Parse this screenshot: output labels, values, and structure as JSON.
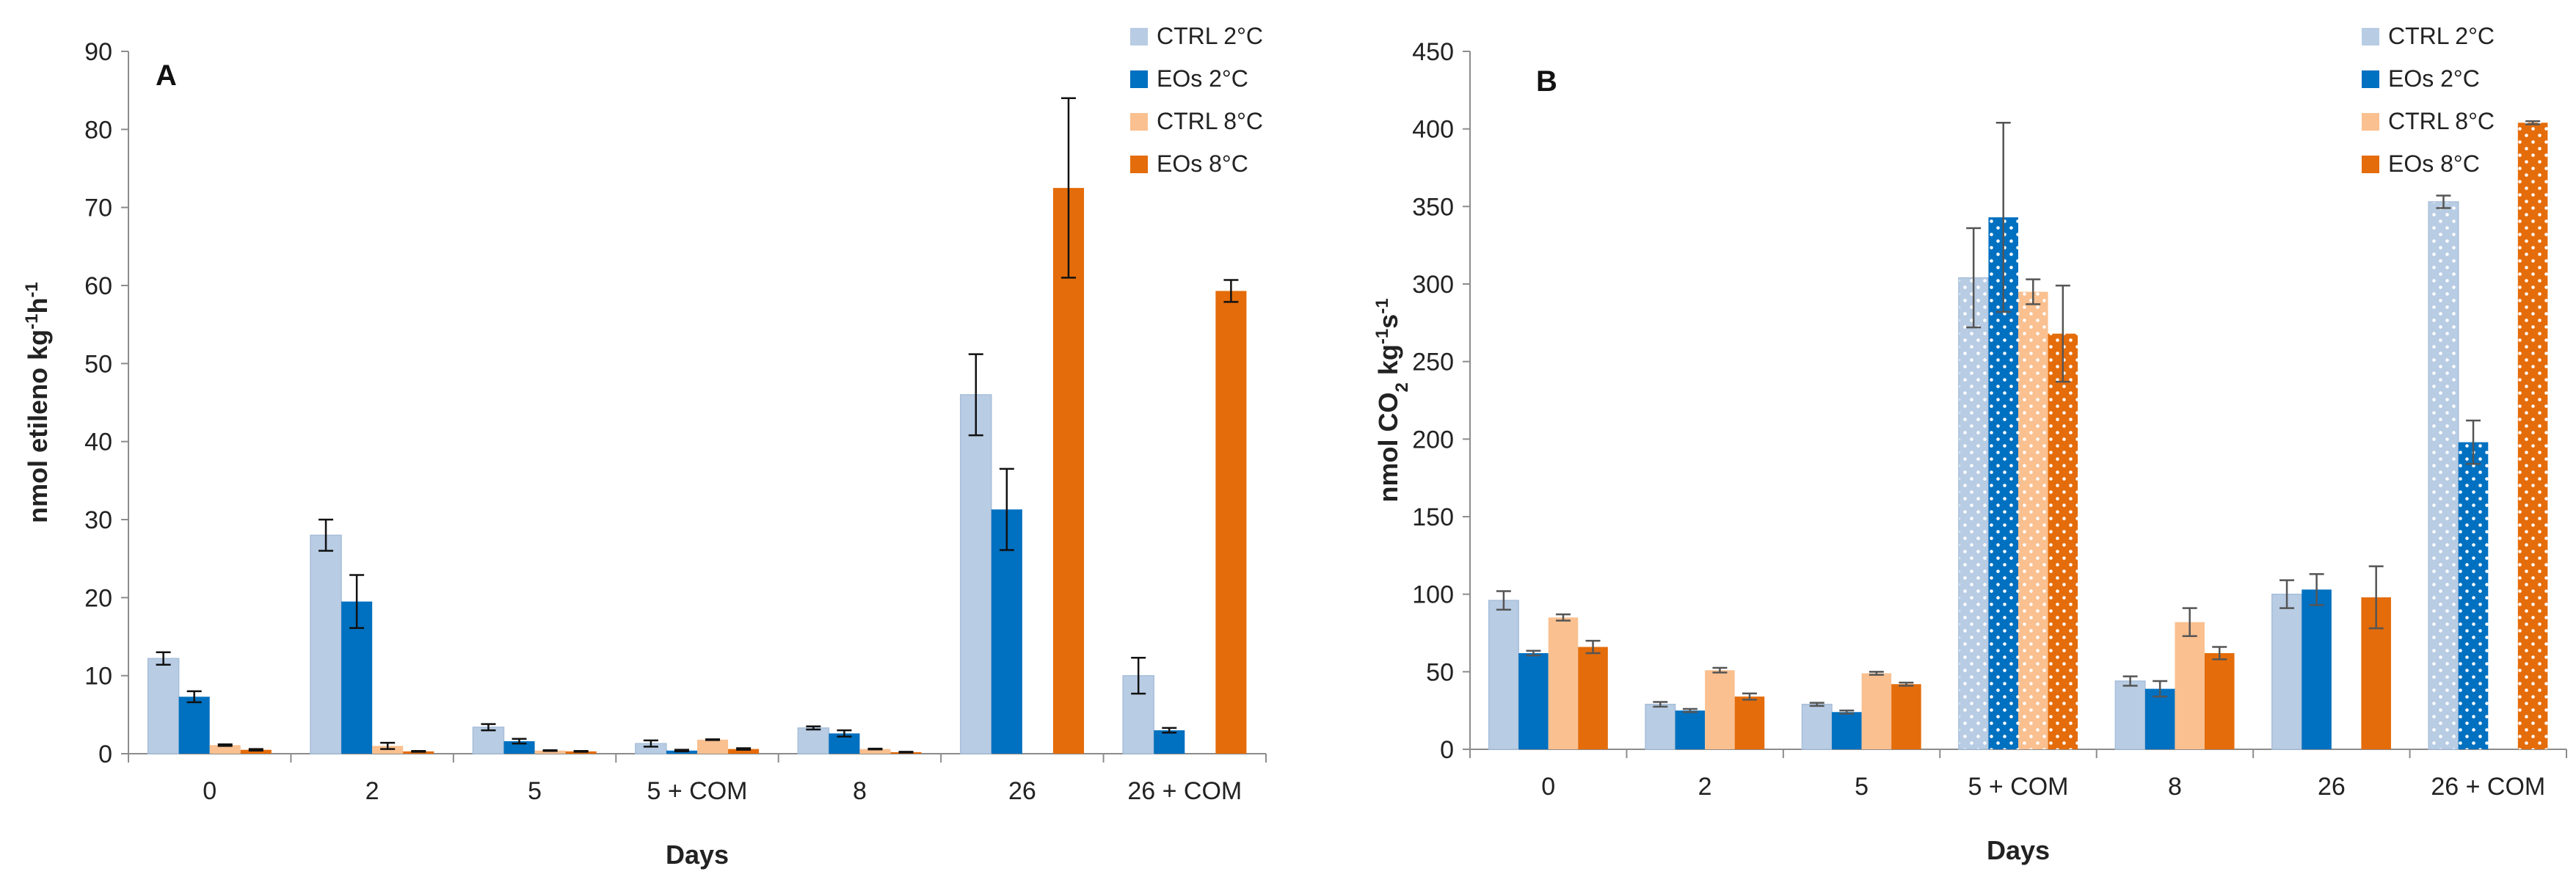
{
  "colors": {
    "CTRL 2°C": "#B8CCE4",
    "EOs 2°C": "#0070C0",
    "CTRL 8°C": "#FAC090",
    "EOs 8°C": "#E46C0A",
    "dotted_categories": [
      "5 + COM",
      "26 + COM"
    ]
  },
  "chart_data": [
    {
      "type": "bar",
      "panel_label": "A",
      "categories": [
        "0",
        "2",
        "5",
        "5 + COM",
        "8",
        "26",
        "26 + COM"
      ],
      "xlabel": "Days",
      "ylabel_parts": [
        "nmol etileno  kg",
        "-1",
        "h",
        "-1"
      ],
      "ylim": [
        0,
        90
      ],
      "yticks": [
        0,
        10,
        20,
        30,
        40,
        50,
        60,
        70,
        80,
        90
      ],
      "legend_position": "top-right",
      "grid": false,
      "dotted_pattern": false,
      "series": [
        {
          "name": "CTRL 2°C",
          "values": [
            12.2,
            28,
            3.4,
            1.3,
            3.3,
            46,
            10
          ],
          "errors": [
            0.8,
            2,
            0.4,
            0.4,
            0.2,
            5.2,
            2.3
          ]
        },
        {
          "name": "EOs 2°C",
          "values": [
            7.3,
            19.5,
            1.6,
            0.4,
            2.6,
            31.3,
            3
          ],
          "errors": [
            0.7,
            3.4,
            0.3,
            0.1,
            0.4,
            5.2,
            0.3
          ]
        },
        {
          "name": "CTRL 8°C",
          "values": [
            1.1,
            1,
            0.4,
            1.8,
            0.6,
            null,
            null
          ],
          "errors": [
            0.1,
            0.4,
            0.05,
            0.05,
            0.05,
            null,
            null
          ]
        },
        {
          "name": "EOs 8°C",
          "values": [
            0.5,
            0.3,
            0.3,
            0.6,
            0.2,
            72.5,
            59.3
          ],
          "errors": [
            0.1,
            0.05,
            0.05,
            0.1,
            0.05,
            11.5,
            1.4
          ]
        }
      ]
    },
    {
      "type": "bar",
      "panel_label": "B",
      "categories": [
        "0",
        "2",
        "5",
        "5 + COM",
        "8",
        "26",
        "26 + COM"
      ],
      "xlabel": "Days",
      "ylabel_parts": [
        "nmol CO",
        "2",
        "  kg",
        "-1",
        "s",
        "-1"
      ],
      "ylim": [
        0,
        450
      ],
      "yticks": [
        0,
        50,
        100,
        150,
        200,
        250,
        300,
        350,
        400,
        450
      ],
      "legend_position": "top-right",
      "grid": false,
      "dotted_pattern": true,
      "series": [
        {
          "name": "CTRL 2°C",
          "values": [
            96,
            29,
            29,
            304,
            44,
            100,
            353
          ],
          "errors": [
            6,
            1.5,
            1,
            32,
            3,
            9,
            4
          ]
        },
        {
          "name": "EOs 2°C",
          "values": [
            62,
            25,
            24,
            343,
            39,
            103,
            198
          ],
          "errors": [
            1.5,
            1,
            1,
            61,
            5,
            10,
            14
          ]
        },
        {
          "name": "CTRL 8°C",
          "values": [
            85,
            51,
            49,
            295,
            82,
            null,
            null
          ],
          "errors": [
            2,
            1.5,
            1,
            8,
            9,
            null,
            null
          ]
        },
        {
          "name": "EOs 8°C",
          "values": [
            66,
            34,
            42,
            268,
            62,
            98,
            404
          ],
          "errors": [
            4,
            2,
            1,
            31,
            4,
            20,
            1
          ]
        }
      ]
    }
  ]
}
